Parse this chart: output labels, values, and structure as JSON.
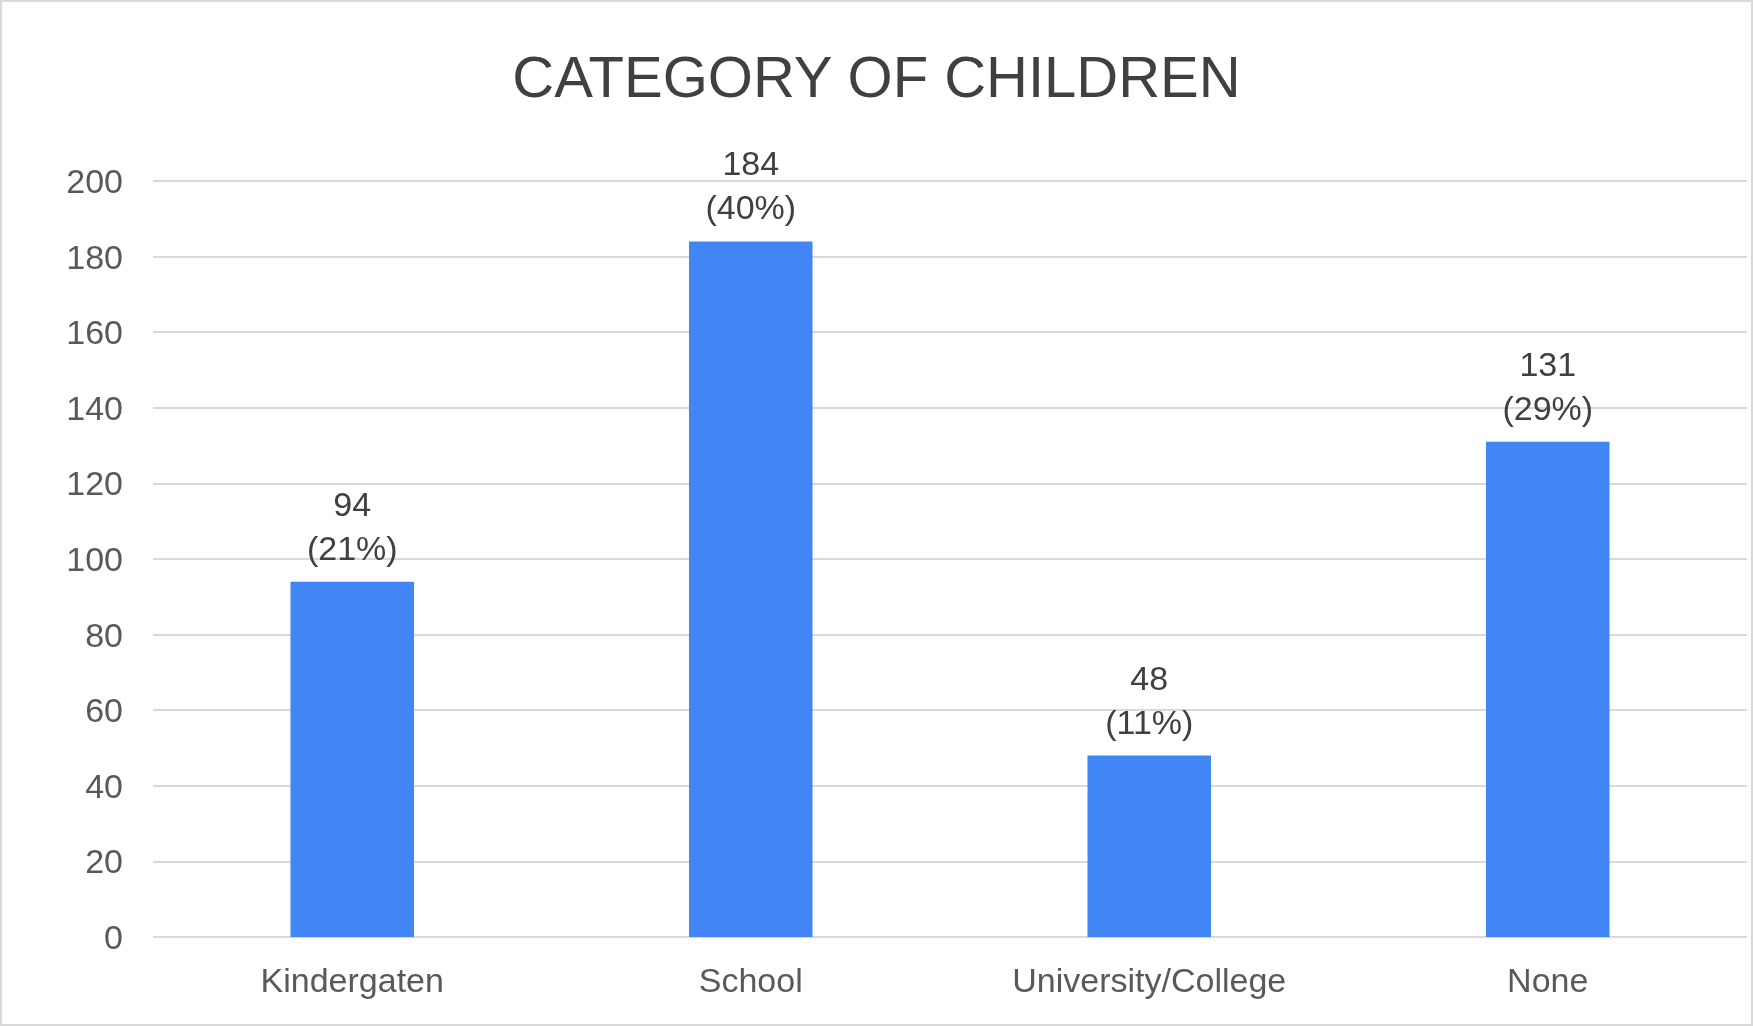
{
  "chart_data": {
    "type": "bar",
    "title": "CATEGORY OF CHILDREN",
    "categories": [
      "Kindergaten",
      "School",
      "University/College",
      "None"
    ],
    "values": [
      94,
      184,
      48,
      131
    ],
    "color": "#4285f4",
    "value_labels": [
      "94\n(21%)",
      "184\n(40%)",
      "48\n(11%)",
      "131\n(29%)"
    ],
    "ylim": [
      0,
      200
    ],
    "yticks": [
      0,
      20,
      40,
      60,
      80,
      100,
      120,
      140,
      160,
      180,
      200
    ],
    "grid": "y"
  }
}
